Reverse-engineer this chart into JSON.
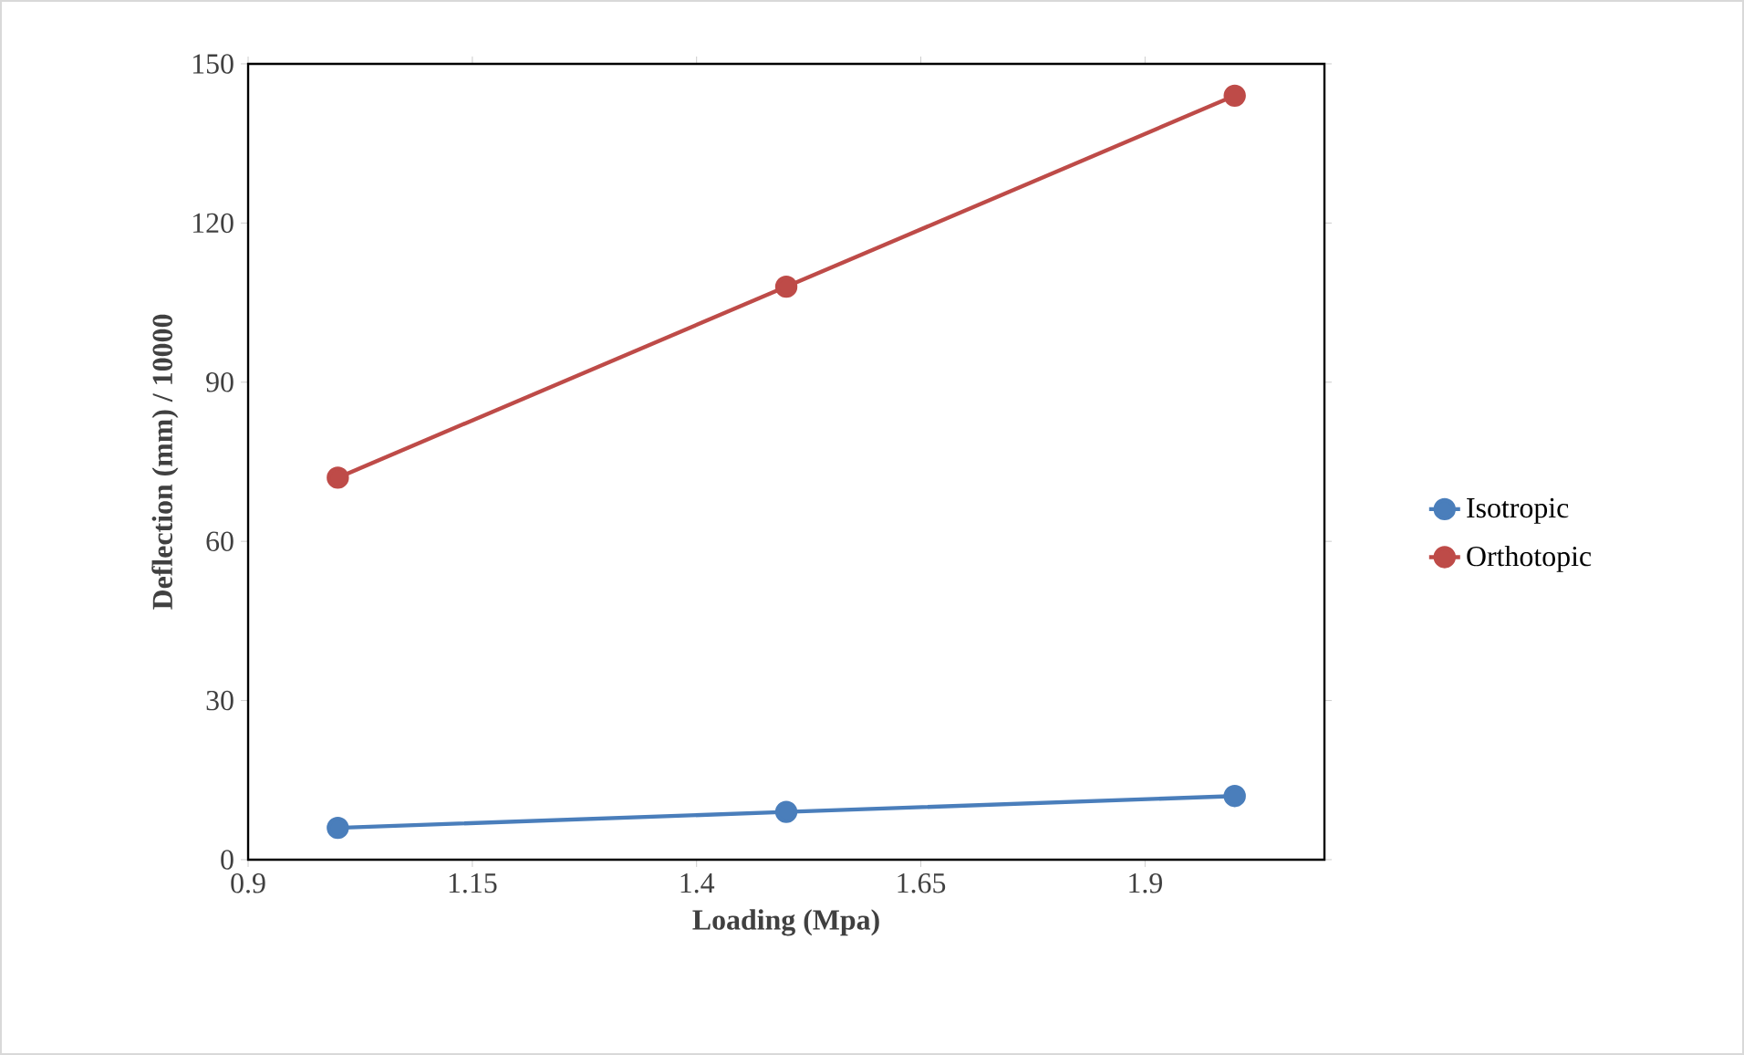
{
  "chart_data": {
    "type": "line",
    "xlabel": "Loading (Mpa)",
    "ylabel": "Deflection (mm) / 10000",
    "xlim": [
      0.9,
      2.1
    ],
    "xticks": [
      0.9,
      1.15,
      1.4,
      1.65,
      1.9
    ],
    "ylim": [
      0,
      150
    ],
    "yticks": [
      0,
      30,
      60,
      90,
      120,
      150
    ],
    "grid": false,
    "legend": "right",
    "marker": "circle",
    "line_style": "solid",
    "series": [
      {
        "name": "Isotropic",
        "color": "#4a7ebb",
        "x": [
          1.0,
          1.5,
          2.0
        ],
        "values": [
          6,
          9,
          12
        ]
      },
      {
        "name": "Orthotopic",
        "color": "#be4b48",
        "x": [
          1.0,
          1.5,
          2.0
        ],
        "values": [
          72,
          108,
          144
        ]
      }
    ]
  }
}
